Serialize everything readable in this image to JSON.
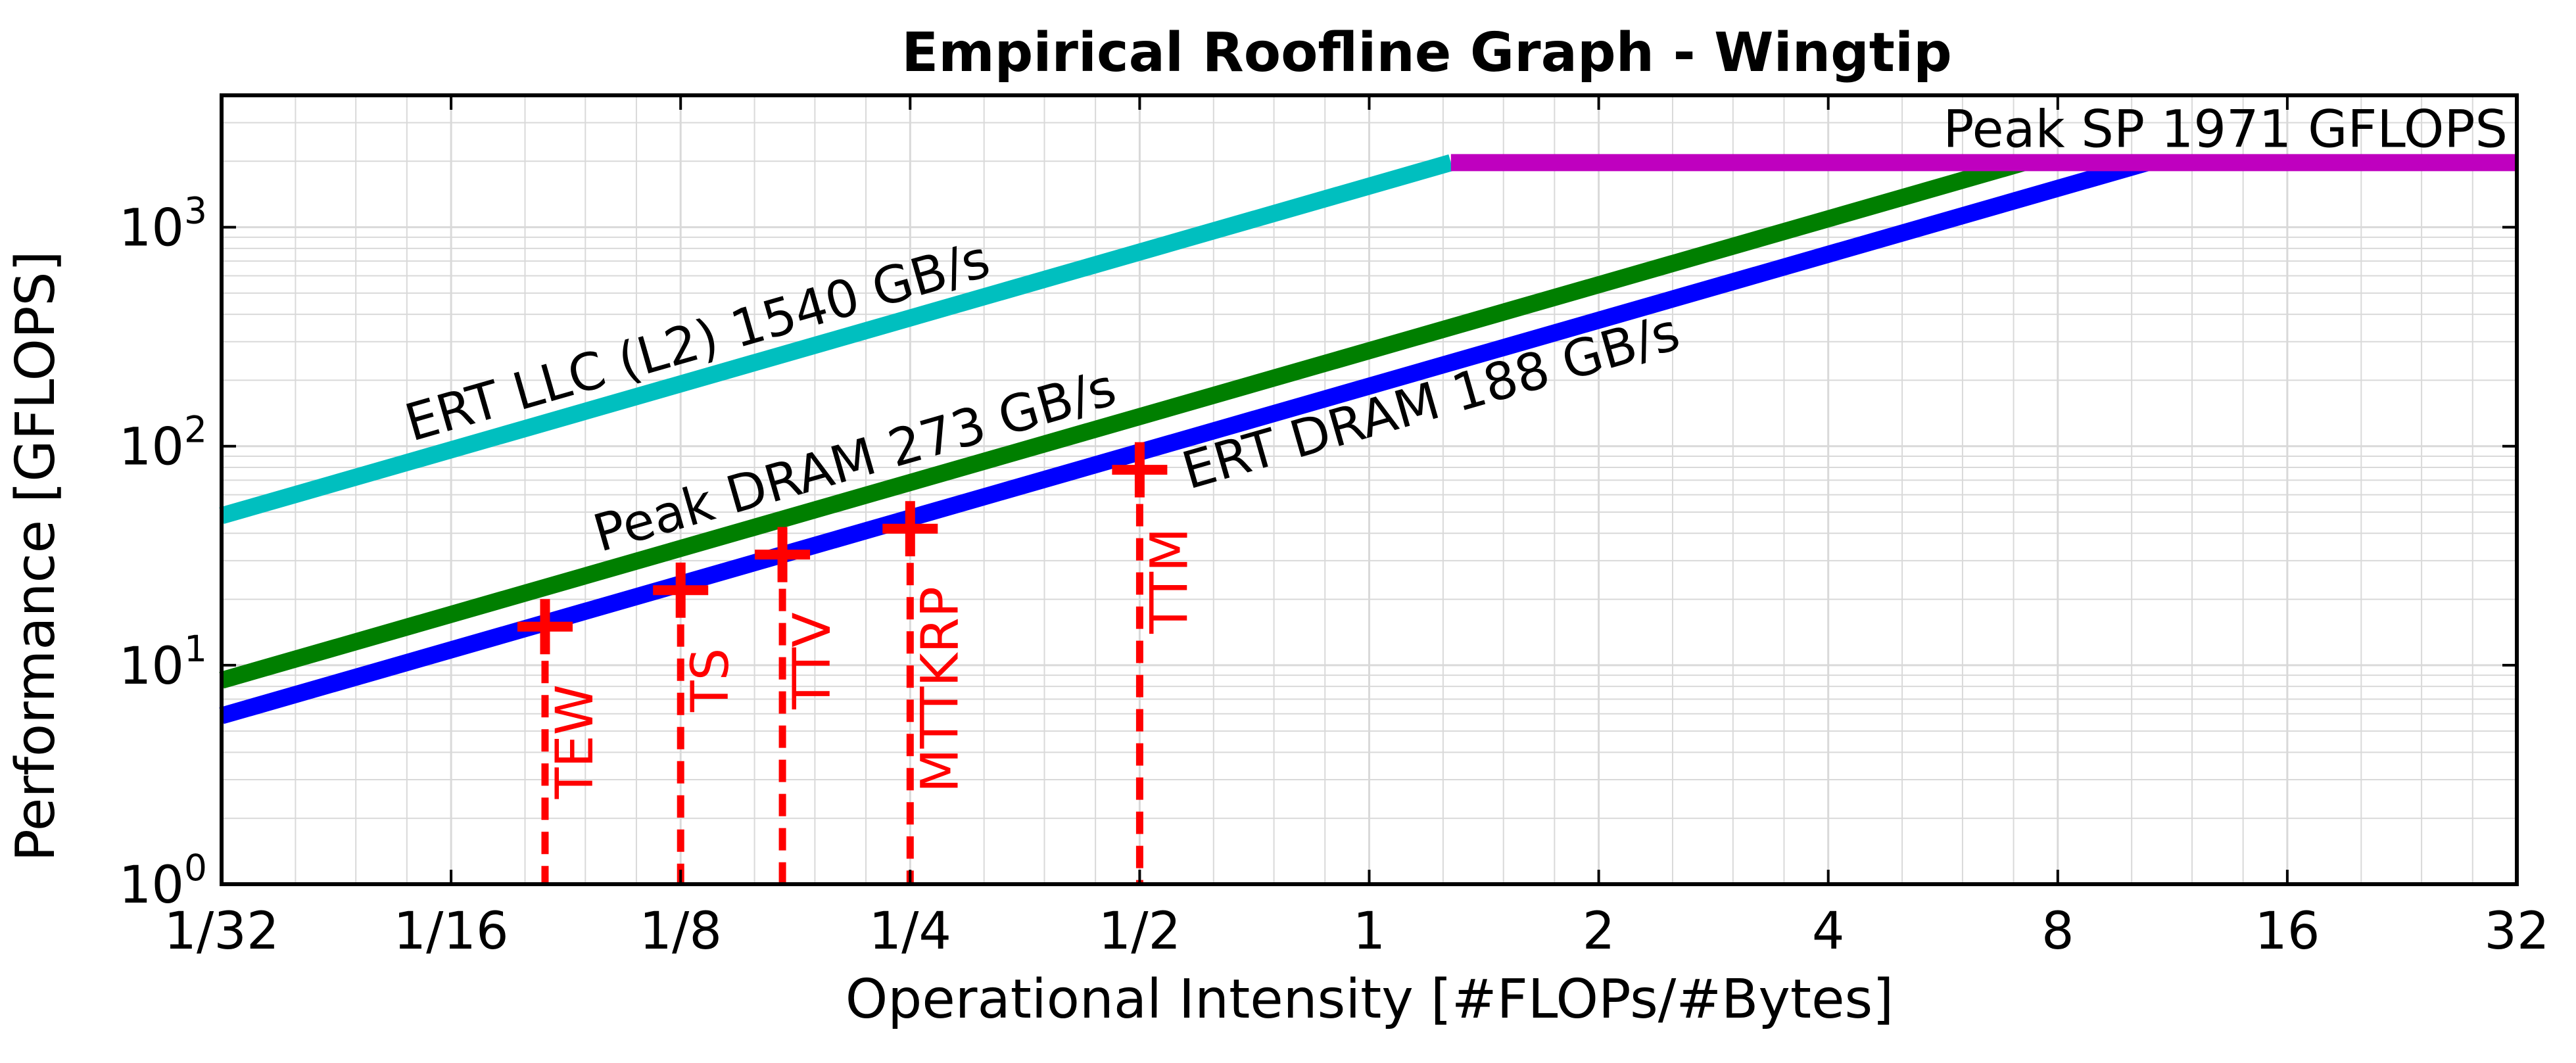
{
  "chart_data": {
    "type": "line",
    "title": "Empirical Roofline Graph - Wingtip",
    "xlabel": "Operational Intensity [#FLOPs/#Bytes]",
    "ylabel": "Performance [GFLOPS]",
    "xscale": "log2",
    "yscale": "log10",
    "xlim": [
      0.03125,
      32
    ],
    "ylim": [
      1,
      4000
    ],
    "grid": true,
    "x_ticks": [
      {
        "value": 0.03125,
        "label": "1/32"
      },
      {
        "value": 0.0625,
        "label": "1/16"
      },
      {
        "value": 0.125,
        "label": "1/8"
      },
      {
        "value": 0.25,
        "label": "1/4"
      },
      {
        "value": 0.5,
        "label": "1/2"
      },
      {
        "value": 1,
        "label": "1"
      },
      {
        "value": 2,
        "label": "2"
      },
      {
        "value": 4,
        "label": "4"
      },
      {
        "value": 8,
        "label": "8"
      },
      {
        "value": 16,
        "label": "16"
      },
      {
        "value": 32,
        "label": "32"
      }
    ],
    "y_ticks": [
      {
        "value": 1,
        "base": "10",
        "exp": "0"
      },
      {
        "value": 10,
        "base": "10",
        "exp": "1"
      },
      {
        "value": 100,
        "base": "10",
        "exp": "2"
      },
      {
        "value": 1000,
        "base": "10",
        "exp": "3"
      }
    ],
    "rooflines": [
      {
        "name": "ERT LLC (L2) 1540 GB/s",
        "type": "bandwidth",
        "slope": 1540,
        "x_end": 1.28,
        "color": "#00bfbf"
      },
      {
        "name": "Peak DRAM 273 GB/s",
        "type": "bandwidth",
        "slope": 273,
        "x_end": 7.22,
        "color": "#007f00"
      },
      {
        "name": "ERT DRAM 188 GB/s",
        "type": "bandwidth",
        "slope": 188,
        "x_end": 10.48,
        "color": "#0000ff"
      },
      {
        "name": "Peak SP 1971 GFLOPS",
        "type": "compute",
        "value": 1971,
        "x_start": 1.28,
        "color": "#bf00bf"
      }
    ],
    "kernels": [
      {
        "name": "TEW",
        "x": 0.083,
        "y": 15
      },
      {
        "name": "TS",
        "x": 0.125,
        "y": 22
      },
      {
        "name": "TTV",
        "x": 0.17,
        "y": 32
      },
      {
        "name": "MTTKRP",
        "x": 0.25,
        "y": 42
      },
      {
        "name": "TTM",
        "x": 0.5,
        "y": 78
      }
    ],
    "kernel_color": "#ff0000"
  }
}
